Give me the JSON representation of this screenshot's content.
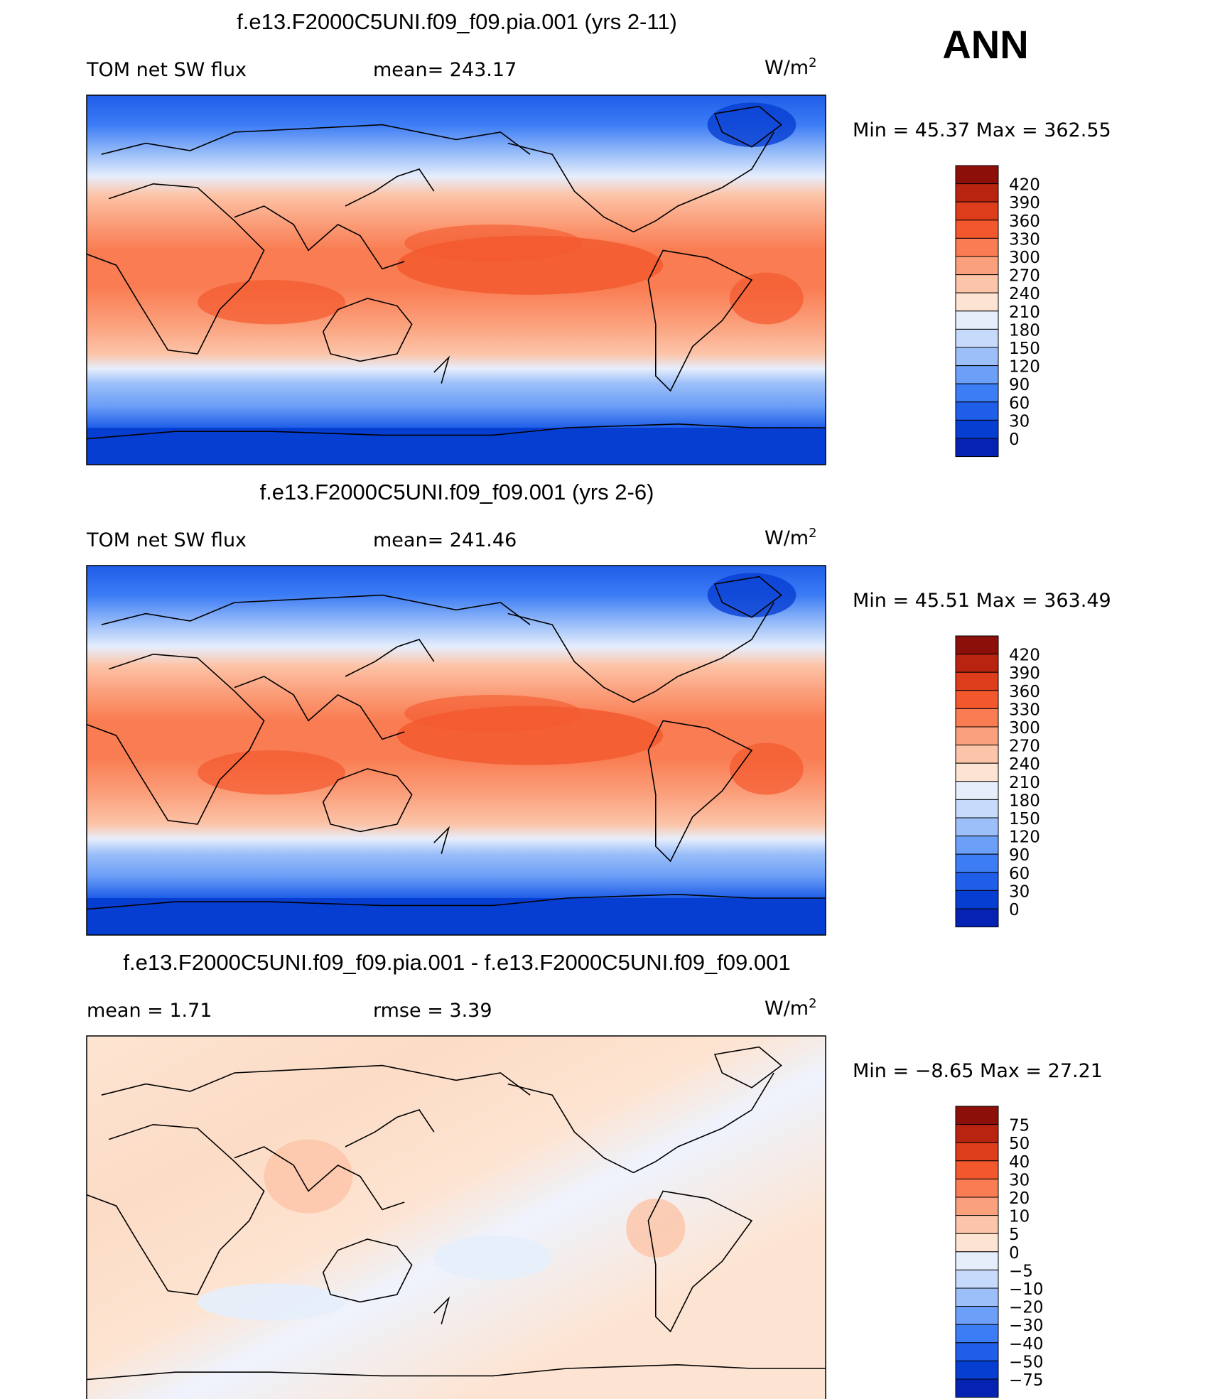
{
  "season": "ANN",
  "units_base": "W/m",
  "units_exp": "2",
  "palettes": {
    "abs": [
      "#08088c",
      "#0522b2",
      "#073ed2",
      "#1f5ee8",
      "#3c7cf5",
      "#6c9ff7",
      "#9cbff9",
      "#c6dafb",
      "#e6eefc",
      "#fde4d2",
      "#fcc4a8",
      "#fba07c",
      "#f97c52",
      "#f3582d",
      "#dd3d1b",
      "#b82410",
      "#8c0f0a"
    ],
    "diff": [
      "#08088c",
      "#0522b2",
      "#073ed2",
      "#1f5ee8",
      "#3c7cf5",
      "#6c9ff7",
      "#9cbff9",
      "#c6dafb",
      "#e6eefc",
      "#fde4d2",
      "#fcc4a8",
      "#fba07c",
      "#f97c52",
      "#f3582d",
      "#dd3d1b",
      "#b82410",
      "#8c0f0a"
    ]
  },
  "chart_data": [
    {
      "type": "heatmap",
      "title": "f.e13.F2000C5UNI.f09_f09.pia.001 (yrs 2-11)",
      "left_label": "TOM  net  SW  flux",
      "mid_label": "mean=  243.17",
      "min_label": "Min  =",
      "min_value": "45.37",
      "max_label": "Max  =",
      "max_value": "362.55",
      "colorbar_levels": [
        "420",
        "390",
        "360",
        "330",
        "300",
        "270",
        "240",
        "210",
        "180",
        "150",
        "120",
        "90",
        "60",
        "30",
        "0"
      ],
      "field": "absolute",
      "mean": 243.17,
      "min": 45.37,
      "max": 362.55
    },
    {
      "type": "heatmap",
      "title": "f.e13.F2000C5UNI.f09_f09.001 (yrs 2-6)",
      "left_label": "TOM  net  SW  flux",
      "mid_label": "mean=  241.46",
      "min_label": "Min  =",
      "min_value": "45.51",
      "max_label": "Max  =",
      "max_value": "363.49",
      "colorbar_levels": [
        "420",
        "390",
        "360",
        "330",
        "300",
        "270",
        "240",
        "210",
        "180",
        "150",
        "120",
        "90",
        "60",
        "30",
        "0"
      ],
      "field": "absolute",
      "mean": 241.46,
      "min": 45.51,
      "max": 363.49
    },
    {
      "type": "heatmap",
      "title": "f.e13.F2000C5UNI.f09_f09.pia.001 - f.e13.F2000C5UNI.f09_f09.001",
      "left_label": "mean  =     1.71",
      "mid_label": "rmse  =     3.39",
      "min_label": "Min  =",
      "min_value": "−8.65",
      "max_label": "Max  =",
      "max_value": "27.21",
      "colorbar_levels": [
        "75",
        "50",
        "40",
        "30",
        "20",
        "10",
        "5",
        "0",
        "−5",
        "−10",
        "−20",
        "−30",
        "−40",
        "−50",
        "−75"
      ],
      "field": "difference",
      "mean": 1.71,
      "rmse": 3.39,
      "min": -8.65,
      "max": 27.21
    }
  ]
}
